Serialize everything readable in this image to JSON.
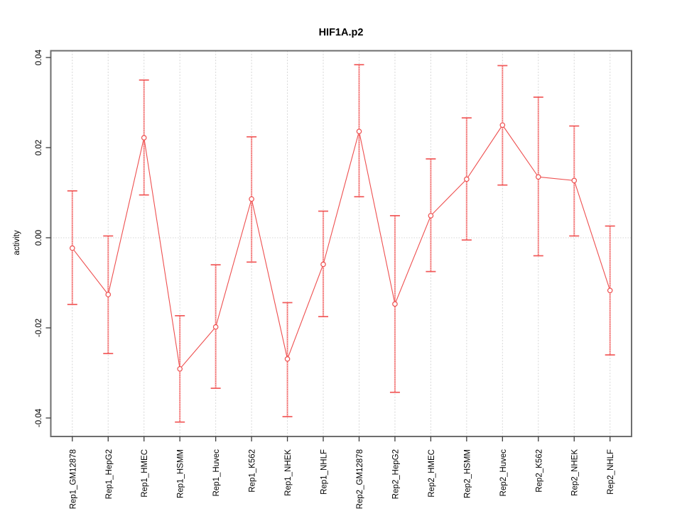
{
  "figure": {
    "title": "HIF1A.p2",
    "ylabel": "activity"
  },
  "chart_data": {
    "type": "line",
    "title": "HIF1A.p2",
    "xlabel": "",
    "ylabel": "activity",
    "categories": [
      "Rep1_GM12878",
      "Rep1_HepG2",
      "Rep1_HMEC",
      "Rep1_HSMM",
      "Rep1_Huvec",
      "Rep1_K562",
      "Rep1_NHEK",
      "Rep1_NHLF",
      "Rep2_GM12878",
      "Rep2_HepG2",
      "Rep2_HMEC",
      "Rep2_HSMM",
      "Rep2_Huvec",
      "Rep2_K562",
      "Rep2_NHEK",
      "Rep2_NHLF"
    ],
    "series": [
      {
        "name": "activity",
        "values": [
          -0.0023,
          -0.0126,
          0.0222,
          -0.0291,
          -0.0198,
          0.0086,
          -0.0269,
          -0.0059,
          0.0236,
          -0.0147,
          0.0049,
          0.013,
          0.025,
          0.0135,
          0.0127,
          -0.0117
        ],
        "upper": [
          0.0104,
          0.0004,
          0.035,
          -0.0173,
          -0.006,
          0.0224,
          -0.0144,
          0.0059,
          0.0384,
          0.0049,
          0.0175,
          0.0266,
          0.0382,
          0.0312,
          0.0248,
          0.0026
        ],
        "lower": [
          -0.0148,
          -0.0257,
          0.0095,
          -0.0409,
          -0.0334,
          -0.0054,
          -0.0397,
          -0.0175,
          0.0091,
          -0.0343,
          -0.0075,
          -0.0005,
          0.0117,
          -0.004,
          0.0004,
          -0.026
        ]
      }
    ],
    "ylim": [
      -0.0441,
      0.0415
    ],
    "yticks": [
      0.04,
      0.02,
      0,
      -0.02,
      -0.04
    ],
    "ytick_labels": [
      "0.04",
      "0.02",
      "0.00",
      "-0.02",
      "-0.04"
    ],
    "x_tick_rotation": 90,
    "y_tick_rotation": 90,
    "grid": {
      "vertical": "dotted",
      "horizontal": "zero-line-only"
    },
    "legend_position": "none",
    "marker": "open-circle",
    "error_bars": true,
    "colors": {
      "series": "#ee4f4f",
      "error_bar_fill": "#f8b0b0",
      "error_bar_dash": "#ef6262",
      "error_cap": "#f15858",
      "grid": "#d6d6d6",
      "border": "#6e6e6e",
      "tick": "#3c3c3c",
      "background": "#ffffff"
    }
  }
}
